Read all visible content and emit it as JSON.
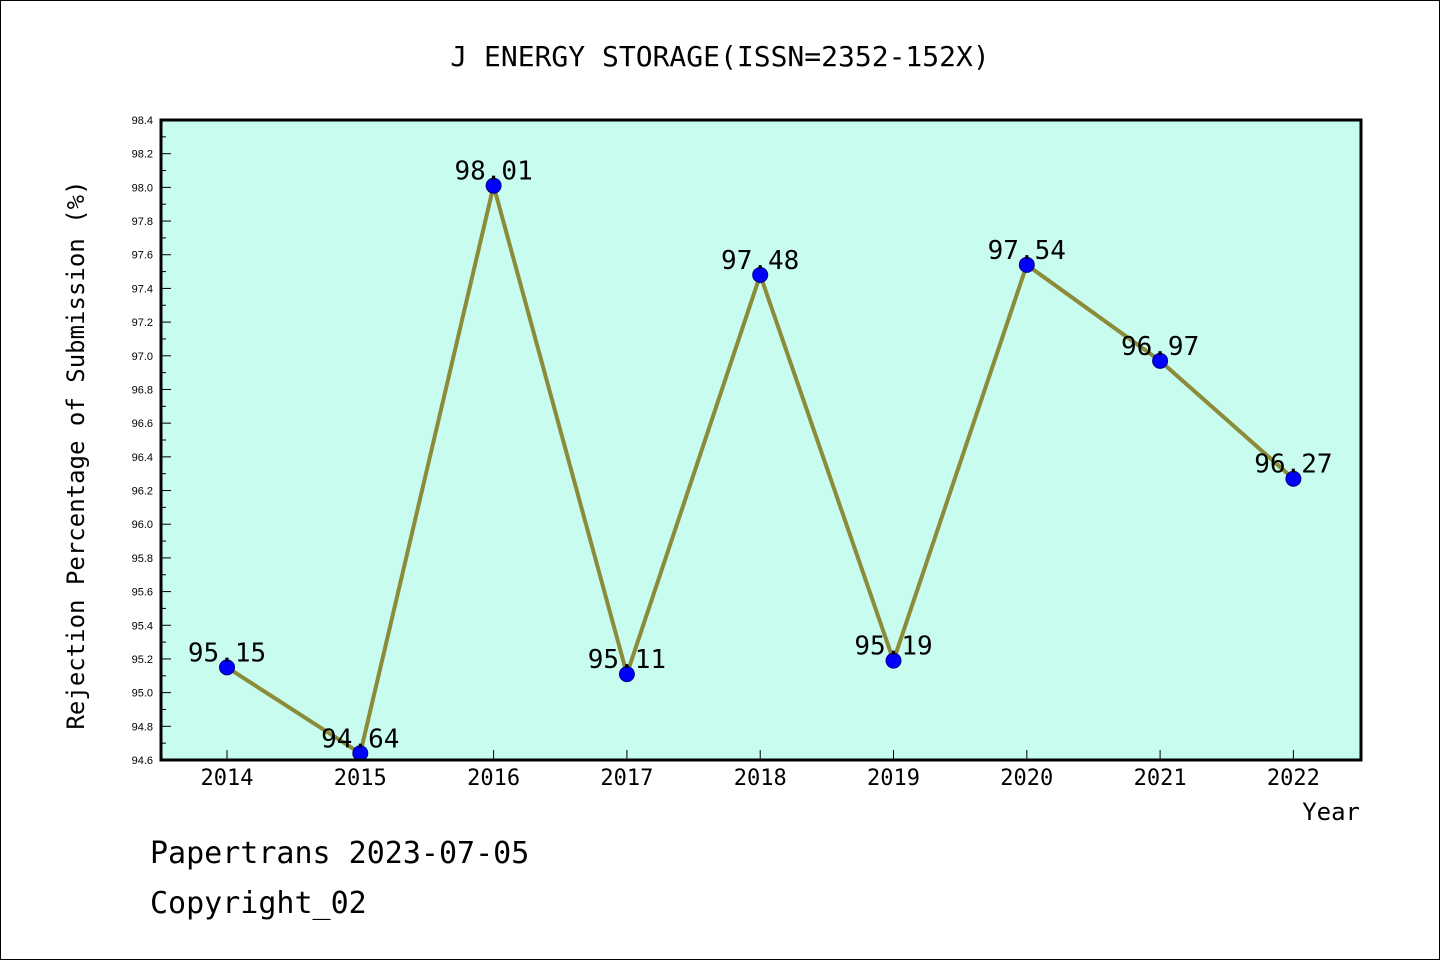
{
  "chart_data": {
    "type": "line",
    "title": "J ENERGY STORAGE(ISSN=2352-152X)",
    "xlabel": "Year",
    "ylabel": "Rejection Percentage of Submission (%)",
    "categories": [
      "2014",
      "2015",
      "2016",
      "2017",
      "2018",
      "2019",
      "2020",
      "2021",
      "2022"
    ],
    "values": [
      95.15,
      94.64,
      98.01,
      95.11,
      97.48,
      95.19,
      97.54,
      96.97,
      96.27
    ],
    "data_labels": [
      "95.15",
      "94.64",
      "98.01",
      "95.11",
      "97.48",
      "95.19",
      "97.54",
      "96.97",
      "96.27"
    ],
    "ylim": [
      94.6,
      98.4
    ],
    "yticks": [
      "94.6",
      "94.8",
      "95.0",
      "95.2",
      "95.4",
      "95.6",
      "95.8",
      "96.0",
      "96.2",
      "96.4",
      "96.6",
      "96.8",
      "97.0",
      "97.2",
      "97.4",
      "97.6",
      "97.8",
      "98.0",
      "98.2",
      "98.4"
    ],
    "grid": false,
    "legend": "none",
    "colors": {
      "plot_background": "#c8fcee",
      "line": "#8b8b3a",
      "marker": "#0000ff"
    }
  },
  "footer": {
    "line1": "Papertrans 2023-07-05",
    "line2": "Copyright_02"
  }
}
